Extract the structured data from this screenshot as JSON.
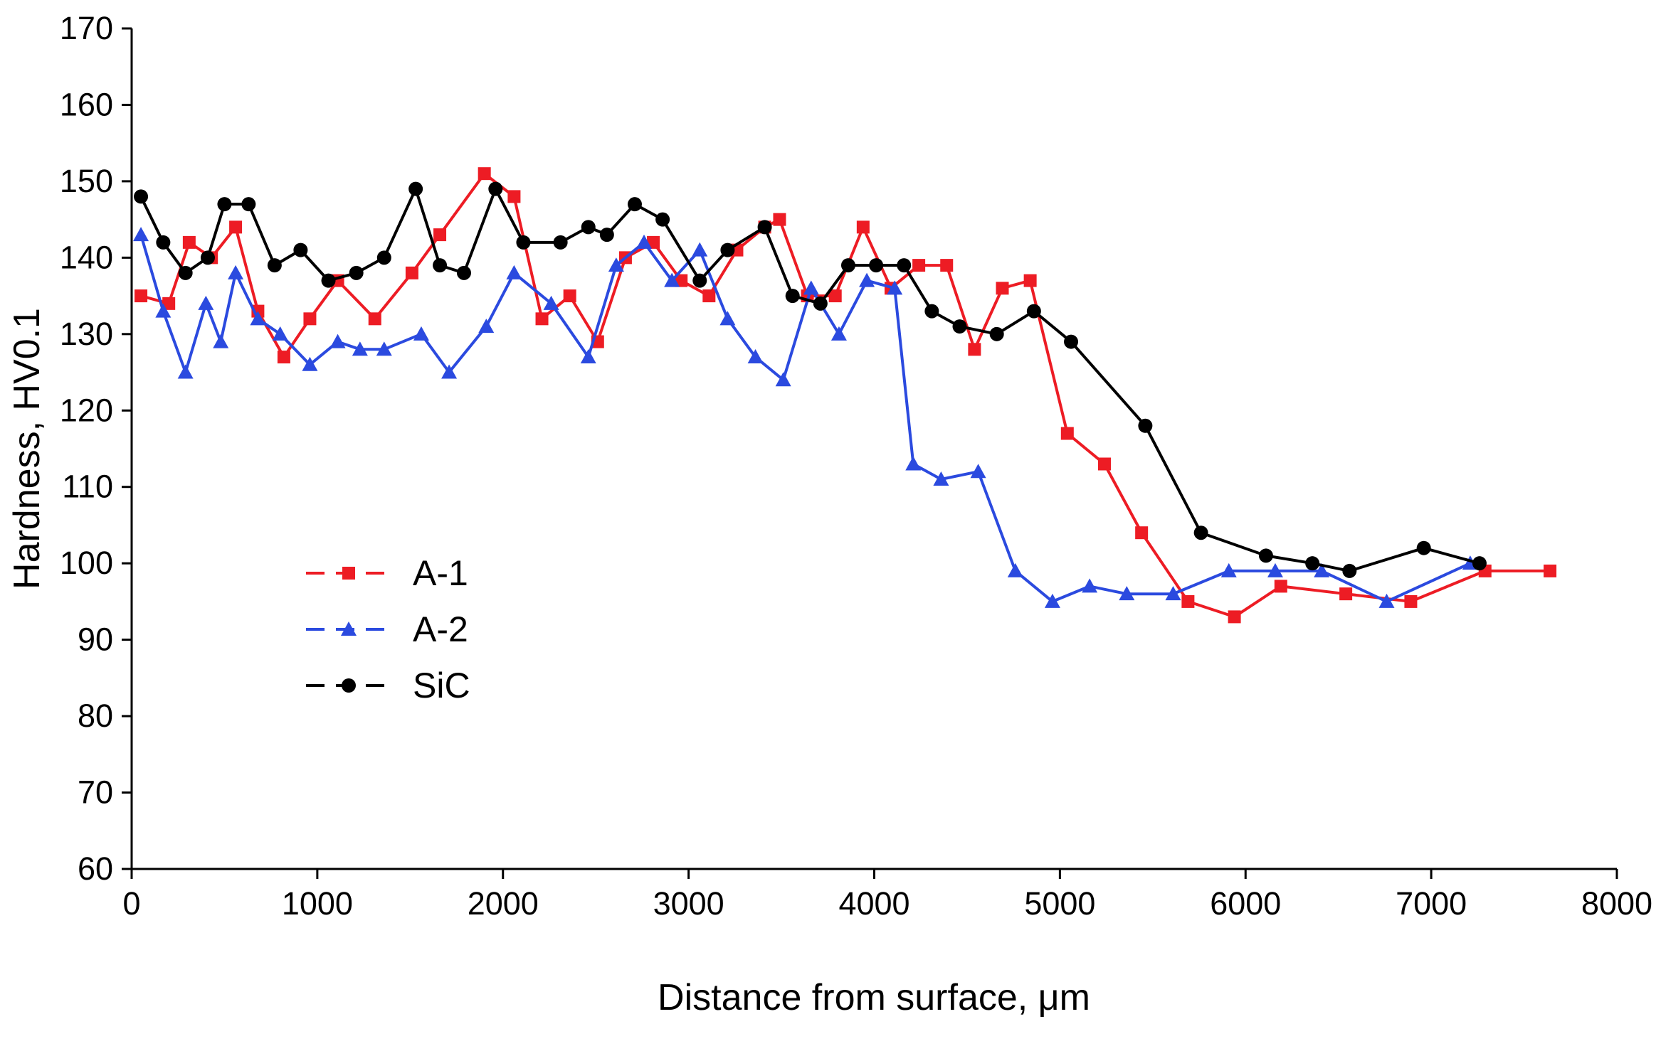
{
  "chart_data": {
    "type": "line",
    "title": "",
    "xlabel": "Distance from surface, μm",
    "ylabel": "Hardness, HV0.1",
    "xlim": [
      0,
      8000
    ],
    "ylim": [
      60,
      170
    ],
    "x_ticks": [
      0,
      1000,
      2000,
      3000,
      4000,
      5000,
      6000,
      7000,
      8000
    ],
    "y_ticks": [
      60,
      70,
      80,
      90,
      100,
      110,
      120,
      130,
      140,
      150,
      160,
      170
    ],
    "grid": false,
    "legend_position": "middle-left",
    "axis_color": "#000000",
    "series": [
      {
        "name": "A-1",
        "color": "#ed1c24",
        "marker": "square",
        "points": [
          [
            50,
            135
          ],
          [
            200,
            134
          ],
          [
            310,
            142
          ],
          [
            430,
            140
          ],
          [
            560,
            144
          ],
          [
            680,
            133
          ],
          [
            820,
            127
          ],
          [
            960,
            132
          ],
          [
            1110,
            137
          ],
          [
            1310,
            132
          ],
          [
            1510,
            138
          ],
          [
            1660,
            143
          ],
          [
            1900,
            151
          ],
          [
            2060,
            148
          ],
          [
            2210,
            132
          ],
          [
            2360,
            135
          ],
          [
            2510,
            129
          ],
          [
            2660,
            140
          ],
          [
            2810,
            142
          ],
          [
            2960,
            137
          ],
          [
            3110,
            135
          ],
          [
            3260,
            141
          ],
          [
            3410,
            144
          ],
          [
            3490,
            145
          ],
          [
            3640,
            135
          ],
          [
            3790,
            135
          ],
          [
            3940,
            144
          ],
          [
            4090,
            136
          ],
          [
            4240,
            139
          ],
          [
            4390,
            139
          ],
          [
            4540,
            128
          ],
          [
            4690,
            136
          ],
          [
            4840,
            137
          ],
          [
            5040,
            117
          ],
          [
            5240,
            113
          ],
          [
            5440,
            104
          ],
          [
            5690,
            95
          ],
          [
            5940,
            93
          ],
          [
            6190,
            97
          ],
          [
            6540,
            96
          ],
          [
            6890,
            95
          ],
          [
            7290,
            99
          ],
          [
            7640,
            99
          ]
        ]
      },
      {
        "name": "A-2",
        "color": "#2b4adf",
        "marker": "triangle",
        "points": [
          [
            50,
            143
          ],
          [
            170,
            133
          ],
          [
            290,
            125
          ],
          [
            400,
            134
          ],
          [
            480,
            129
          ],
          [
            560,
            138
          ],
          [
            680,
            132
          ],
          [
            800,
            130
          ],
          [
            960,
            126
          ],
          [
            1110,
            129
          ],
          [
            1230,
            128
          ],
          [
            1360,
            128
          ],
          [
            1560,
            130
          ],
          [
            1710,
            125
          ],
          [
            1910,
            131
          ],
          [
            2060,
            138
          ],
          [
            2260,
            134
          ],
          [
            2460,
            127
          ],
          [
            2610,
            139
          ],
          [
            2760,
            142
          ],
          [
            2910,
            137
          ],
          [
            3060,
            141
          ],
          [
            3210,
            132
          ],
          [
            3360,
            127
          ],
          [
            3510,
            124
          ],
          [
            3660,
            136
          ],
          [
            3810,
            130
          ],
          [
            3960,
            137
          ],
          [
            4110,
            136
          ],
          [
            4210,
            113
          ],
          [
            4360,
            111
          ],
          [
            4560,
            112
          ],
          [
            4760,
            99
          ],
          [
            4960,
            95
          ],
          [
            5160,
            97
          ],
          [
            5360,
            96
          ],
          [
            5610,
            96
          ],
          [
            5910,
            99
          ],
          [
            6160,
            99
          ],
          [
            6410,
            99
          ],
          [
            6760,
            95
          ],
          [
            7210,
            100
          ]
        ]
      },
      {
        "name": "SiC",
        "color": "#000000",
        "marker": "circle",
        "points": [
          [
            50,
            148
          ],
          [
            170,
            142
          ],
          [
            290,
            138
          ],
          [
            410,
            140
          ],
          [
            500,
            147
          ],
          [
            630,
            147
          ],
          [
            770,
            139
          ],
          [
            910,
            141
          ],
          [
            1060,
            137
          ],
          [
            1210,
            138
          ],
          [
            1360,
            140
          ],
          [
            1530,
            149
          ],
          [
            1660,
            139
          ],
          [
            1790,
            138
          ],
          [
            1960,
            149
          ],
          [
            2110,
            142
          ],
          [
            2310,
            142
          ],
          [
            2460,
            144
          ],
          [
            2560,
            143
          ],
          [
            2710,
            147
          ],
          [
            2860,
            145
          ],
          [
            3060,
            137
          ],
          [
            3210,
            141
          ],
          [
            3410,
            144
          ],
          [
            3560,
            135
          ],
          [
            3710,
            134
          ],
          [
            3860,
            139
          ],
          [
            4010,
            139
          ],
          [
            4160,
            139
          ],
          [
            4310,
            133
          ],
          [
            4460,
            131
          ],
          [
            4660,
            130
          ],
          [
            4860,
            133
          ],
          [
            5060,
            129
          ],
          [
            5460,
            118
          ],
          [
            5760,
            104
          ],
          [
            6110,
            101
          ],
          [
            6360,
            100
          ],
          [
            6560,
            99
          ],
          [
            6960,
            102
          ],
          [
            7260,
            100
          ]
        ]
      }
    ]
  }
}
